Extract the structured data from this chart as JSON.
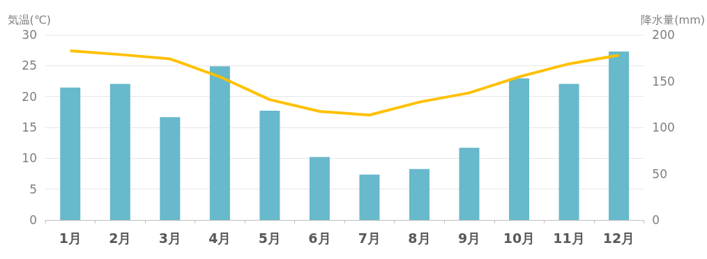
{
  "chart_data": {
    "type": "bar",
    "ylabel": "気温(℃)",
    "y2label": "降水量(mm)",
    "categories": [
      "1月",
      "2月",
      "3月",
      "4月",
      "5月",
      "6月",
      "7月",
      "8月",
      "9月",
      "10月",
      "11月",
      "12月"
    ],
    "series": [
      {
        "axis": "y2",
        "color": "#67b9cb",
        "values": [
          143,
          147,
          111,
          166,
          118,
          68,
          49,
          55,
          78,
          153,
          147,
          182
        ]
      },
      {
        "type": "line",
        "axis": "y",
        "color": "#ffc000",
        "marker": "none",
        "values": [
          27.4,
          26.8,
          26.1,
          23.2,
          19.5,
          17.6,
          17.0,
          19.1,
          20.6,
          23.2,
          25.3,
          26.7
        ]
      }
    ],
    "ylim": [
      0,
      30
    ],
    "yticks": [
      0,
      5,
      10,
      15,
      20,
      25,
      30
    ],
    "y2lim": [
      0,
      200
    ],
    "y2ticks": [
      0,
      50,
      100,
      150,
      200
    ],
    "grid": "y"
  }
}
